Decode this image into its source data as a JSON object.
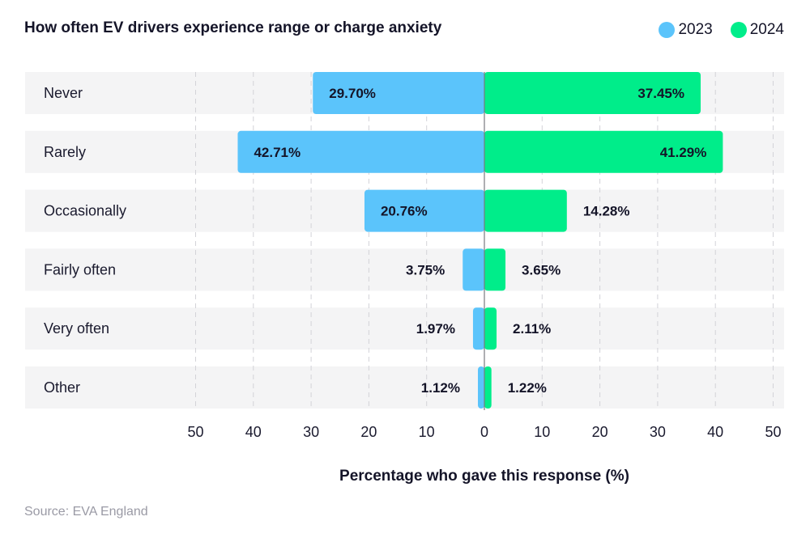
{
  "chart_data": {
    "type": "bar",
    "orientation": "horizontal-diverging",
    "title": "How often EV drivers experience range or charge anxiety",
    "categories": [
      "Never",
      "Rarely",
      "Occasionally",
      "Fairly often",
      "Very often",
      "Other"
    ],
    "series": [
      {
        "name": "2023",
        "color": "#5bc4fb",
        "direction": "left",
        "values": [
          29.7,
          42.71,
          20.76,
          3.75,
          1.97,
          1.12
        ],
        "labels": [
          "29.70%",
          "42.71%",
          "20.76%",
          "3.75%",
          "1.97%",
          "1.12%"
        ]
      },
      {
        "name": "2024",
        "color": "#00ed8a",
        "direction": "right",
        "values": [
          37.45,
          41.29,
          14.28,
          3.65,
          2.11,
          1.22
        ],
        "labels": [
          "37.45%",
          "41.29%",
          "14.28%",
          "3.65%",
          "2.11%",
          "1.22%"
        ]
      }
    ],
    "xlabel": "Percentage who gave this response (%)",
    "xlim": [
      -50,
      50
    ],
    "ticks": [
      "50",
      "40",
      "30",
      "20",
      "10",
      "0",
      "10",
      "20",
      "30",
      "40",
      "50"
    ],
    "tick_values": [
      -50,
      -40,
      -30,
      -20,
      -10,
      0,
      10,
      20,
      30,
      40,
      50
    ],
    "grid": "dashed vertical",
    "legend_position": "top-right"
  },
  "source": "Source: EVA England"
}
